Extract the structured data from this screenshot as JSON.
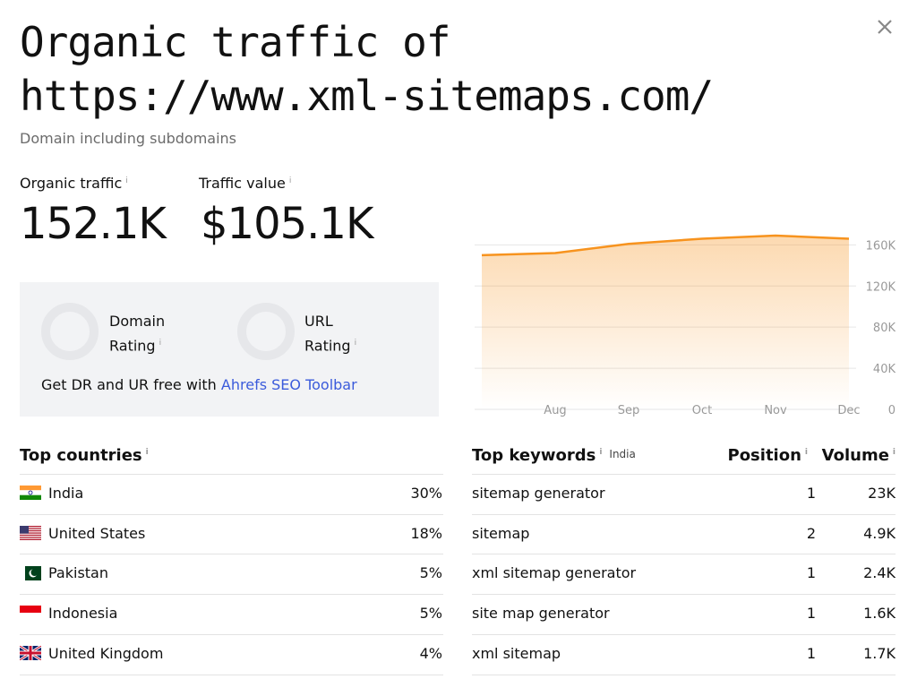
{
  "header": {
    "title_line1": "Organic traffic of",
    "title_line2": "https://www.xml-sitemaps.com/",
    "subtitle": "Domain including subdomains"
  },
  "info": "i",
  "metrics": [
    {
      "label": "Organic traffic",
      "value": "152.1K"
    },
    {
      "label": "Traffic value",
      "value": "$105.1K"
    }
  ],
  "ratings": [
    "Domain Rating",
    "URL Rating"
  ],
  "promo": {
    "text": "Get DR and UR free with",
    "link": "Ahrefs SEO Toolbar"
  },
  "chart_data": {
    "type": "area",
    "categories": [
      null,
      "Aug",
      "Sep",
      "Oct",
      "Nov",
      "Dec"
    ],
    "values": [
      150000,
      152000,
      161000,
      166000,
      169000,
      166000
    ],
    "color": "#f7931e",
    "ylim": [
      0,
      176000
    ],
    "yticks": [
      0,
      {
        "value": 40000,
        "label": "40K"
      },
      {
        "value": 80000,
        "label": "80K"
      },
      {
        "value": 120000,
        "label": "120K"
      },
      {
        "value": 160000,
        "label": "160K"
      }
    ],
    "grid": true
  },
  "countries": {
    "title": "Top countries",
    "rows": [
      {
        "name": "India",
        "share": "30%"
      },
      {
        "name": "United States",
        "share": "18%"
      },
      {
        "name": "Pakistan",
        "share": "5%"
      },
      {
        "name": "Indonesia",
        "share": "5%"
      },
      {
        "name": "United Kingdom",
        "share": "4%"
      }
    ]
  },
  "keywords": {
    "title": "Top keywords",
    "country": "India",
    "position_header": "Position",
    "volume_header": "Volume",
    "rows": [
      {
        "keyword": "sitemap generator",
        "position": "1",
        "volume": "23K"
      },
      {
        "keyword": "sitemap",
        "position": "2",
        "volume": "4.9K"
      },
      {
        "keyword": "xml sitemap generator",
        "position": "1",
        "volume": "2.4K"
      },
      {
        "keyword": "site map generator",
        "position": "1",
        "volume": "1.6K"
      },
      {
        "keyword": "xml sitemap",
        "position": "1",
        "volume": "1.7K"
      }
    ]
  }
}
